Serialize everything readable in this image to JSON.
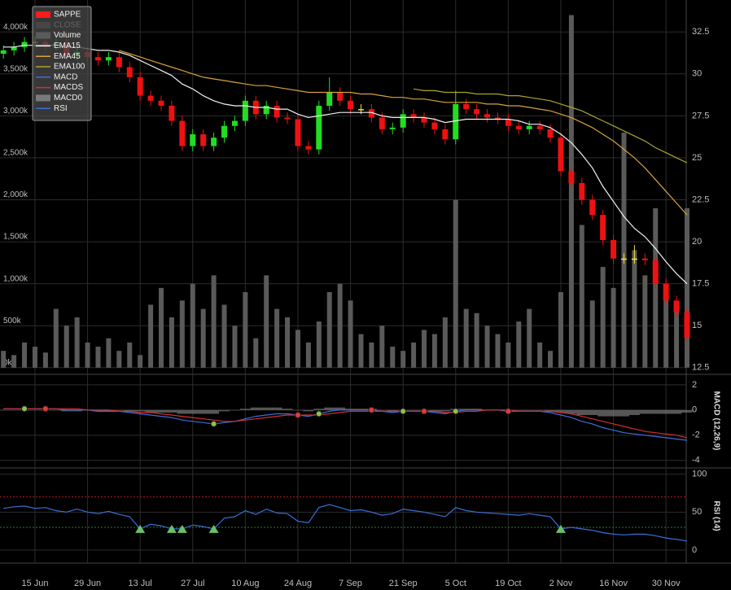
{
  "chart_data": [
    {
      "type": "candlestick",
      "categories": [
        null,
        null,
        null,
        "15 Jun",
        null,
        null,
        null,
        null,
        "29 Jun",
        null,
        null,
        null,
        null,
        "13 Jul",
        null,
        null,
        null,
        null,
        "27 Jul",
        null,
        null,
        null,
        null,
        "10 Aug",
        null,
        null,
        null,
        null,
        "24 Aug",
        null,
        null,
        null,
        null,
        "7 Sep",
        null,
        null,
        null,
        null,
        "21 Sep",
        null,
        null,
        null,
        null,
        "5 Oct",
        null,
        null,
        null,
        null,
        "19 Oct",
        null,
        null,
        null,
        null,
        "2 Nov",
        null,
        null,
        null,
        null,
        "16 Nov",
        null,
        null,
        null,
        null,
        "30 Nov",
        null,
        null
      ],
      "open": [
        31.2,
        31.4,
        31.6,
        31.9,
        31.9,
        31.7,
        31.8,
        31.1,
        31.3,
        31.0,
        30.8,
        31.0,
        30.4,
        29.8,
        28.7,
        28.4,
        28.1,
        27.2,
        25.7,
        26.4,
        25.7,
        26.2,
        26.9,
        27.2,
        28.4,
        27.6,
        28.1,
        27.4,
        27.3,
        25.7,
        25.5,
        28.1,
        28.9,
        28.4,
        27.9,
        27.9,
        27.4,
        26.7,
        26.8,
        27.6,
        27.4,
        27.1,
        26.7,
        26.1,
        28.2,
        27.9,
        27.6,
        27.4,
        27.3,
        26.9,
        26.7,
        26.9,
        26.7,
        26.2,
        24.2,
        23.5,
        22.5,
        21.6,
        20.1,
        19.0,
        19.0,
        19.0,
        18.9,
        17.5,
        16.5,
        15.8
      ],
      "high": [
        31.7,
        31.9,
        32.2,
        32.2,
        32.2,
        32.1,
        32.1,
        31.6,
        31.6,
        31.3,
        31.3,
        31.3,
        30.7,
        30.1,
        29.0,
        28.7,
        28.4,
        27.5,
        26.7,
        26.7,
        26.5,
        27.2,
        27.5,
        28.7,
        28.7,
        28.4,
        28.4,
        27.7,
        27.6,
        26.0,
        28.4,
        29.8,
        29.2,
        28.7,
        28.2,
        28.2,
        27.7,
        27.1,
        27.9,
        27.9,
        27.7,
        27.4,
        27.0,
        29.0,
        28.5,
        28.2,
        27.9,
        27.7,
        27.6,
        27.2,
        27.2,
        27.2,
        27.0,
        26.5,
        24.5,
        23.8,
        22.8,
        21.9,
        20.4,
        19.3,
        19.8,
        19.3,
        19.2,
        17.8,
        16.8,
        16.1
      ],
      "low": [
        30.9,
        31.1,
        31.3,
        31.6,
        31.4,
        31.4,
        30.8,
        30.8,
        30.7,
        30.5,
        30.5,
        30.1,
        29.5,
        28.4,
        28.1,
        27.8,
        26.9,
        25.4,
        25.4,
        25.4,
        25.4,
        25.9,
        26.6,
        26.9,
        27.3,
        27.3,
        27.1,
        27.0,
        25.4,
        25.2,
        25.2,
        27.8,
        28.1,
        27.6,
        27.6,
        27.1,
        26.4,
        26.4,
        26.5,
        27.1,
        26.8,
        26.4,
        25.8,
        25.8,
        27.6,
        27.3,
        27.1,
        27.0,
        26.6,
        26.4,
        26.4,
        26.4,
        25.9,
        23.9,
        23.2,
        22.2,
        21.3,
        19.8,
        18.7,
        18.7,
        18.7,
        18.6,
        17.2,
        16.2,
        15.5,
        14.0
      ],
      "close": [
        31.4,
        31.6,
        31.9,
        31.9,
        31.7,
        31.8,
        31.1,
        31.3,
        31.0,
        30.8,
        31.0,
        30.4,
        29.8,
        28.7,
        28.4,
        28.1,
        27.2,
        25.7,
        26.4,
        25.7,
        26.2,
        26.9,
        27.2,
        28.4,
        27.6,
        28.1,
        27.4,
        27.3,
        25.7,
        25.5,
        28.1,
        28.9,
        28.4,
        27.9,
        27.9,
        27.4,
        26.7,
        26.8,
        27.6,
        27.4,
        27.1,
        26.7,
        26.1,
        28.2,
        27.9,
        27.6,
        27.4,
        27.3,
        26.9,
        26.7,
        26.9,
        26.7,
        26.2,
        24.2,
        23.5,
        22.5,
        21.6,
        20.1,
        19.0,
        19.0,
        19.0,
        18.9,
        17.5,
        16.5,
        15.8,
        14.3
      ],
      "up_color": "#22dd22",
      "down_color": "#ee1111",
      "flat_color": "#f0e040",
      "ylim": [
        12.2,
        34.4
      ],
      "yticks": [
        12.5,
        15,
        17.5,
        20,
        22.5,
        25,
        27.5,
        30,
        32.5
      ],
      "volume": {
        "name": "Volume",
        "color": "#5a5a5a",
        "axis": "y2",
        "values": [
          200,
          150,
          300,
          250,
          180,
          700,
          500,
          600,
          300,
          250,
          350,
          200,
          300,
          150,
          750,
          950,
          600,
          800,
          1000,
          700,
          1100,
          750,
          500,
          900,
          350,
          1100,
          700,
          600,
          450,
          300,
          550,
          900,
          1000,
          800,
          400,
          300,
          500,
          250,
          200,
          300,
          450,
          400,
          600,
          2000,
          700,
          650,
          500,
          400,
          300,
          550,
          700,
          300,
          200,
          900,
          4200,
          1700,
          800,
          1200,
          950,
          2800,
          1400,
          1100,
          1900,
          1000,
          700,
          1900
        ]
      },
      "y2lim": [
        -60,
        4380
      ],
      "y2ticks": [
        {
          "value": 0,
          "label": "0k"
        },
        {
          "value": 500,
          "label": "500k"
        },
        {
          "value": 1000,
          "label": "1,000k"
        },
        {
          "value": 1500,
          "label": "1,500k"
        },
        {
          "value": 2000,
          "label": "2,000k"
        },
        {
          "value": 2500,
          "label": "2,500k"
        },
        {
          "value": 3000,
          "label": "3,000k"
        },
        {
          "value": 3500,
          "label": "3,500k"
        },
        {
          "value": 4000,
          "label": "4,000k"
        }
      ],
      "series": [
        {
          "name": "EMA15",
          "color": "#f2f2f2",
          "values": [
            31.6,
            31.6,
            31.7,
            31.7,
            31.7,
            31.7,
            31.6,
            31.6,
            31.5,
            31.4,
            31.4,
            31.3,
            31.1,
            30.8,
            30.5,
            30.2,
            29.9,
            29.4,
            29.1,
            28.7,
            28.4,
            28.2,
            28.1,
            28.1,
            28.0,
            28.0,
            27.9,
            27.9,
            27.6,
            27.4,
            27.5,
            27.6,
            27.7,
            27.7,
            27.7,
            27.7,
            27.5,
            27.4,
            27.4,
            27.4,
            27.4,
            27.3,
            27.1,
            27.2,
            27.3,
            27.3,
            27.3,
            27.3,
            27.3,
            27.2,
            27.0,
            27.0,
            26.8,
            26.4,
            25.9,
            25.2,
            24.4,
            23.3,
            22.4,
            21.5,
            20.8,
            20.3,
            19.6,
            18.8,
            18.1,
            17.5
          ]
        },
        {
          "name": "EMA45",
          "color": "#d9a13a",
          "values": [
            null,
            null,
            null,
            null,
            null,
            null,
            null,
            null,
            null,
            null,
            null,
            31.4,
            31.2,
            31.0,
            30.8,
            30.6,
            30.4,
            30.2,
            30.0,
            29.8,
            29.7,
            29.6,
            29.5,
            29.4,
            29.3,
            29.3,
            29.2,
            29.1,
            29.0,
            28.9,
            28.9,
            28.9,
            28.9,
            28.9,
            28.8,
            28.8,
            28.7,
            28.6,
            28.6,
            28.5,
            28.5,
            28.4,
            28.3,
            28.3,
            28.3,
            28.3,
            28.2,
            28.2,
            28.1,
            28.1,
            28.0,
            27.9,
            27.8,
            27.6,
            27.4,
            27.1,
            26.8,
            26.4,
            26.0,
            25.5,
            25.0,
            24.4,
            23.7,
            23.0,
            22.3,
            21.6
          ]
        },
        {
          "name": "EMA100",
          "color": "#a8a62a",
          "values": [
            null,
            null,
            null,
            null,
            null,
            null,
            null,
            null,
            null,
            null,
            null,
            null,
            null,
            null,
            null,
            null,
            null,
            null,
            null,
            null,
            null,
            null,
            null,
            null,
            null,
            null,
            null,
            null,
            null,
            null,
            null,
            null,
            null,
            null,
            null,
            null,
            null,
            null,
            null,
            29.1,
            29.0,
            29.0,
            28.9,
            28.9,
            28.9,
            28.8,
            28.8,
            28.8,
            28.7,
            28.7,
            28.6,
            28.5,
            28.4,
            28.2,
            28.0,
            27.8,
            27.5,
            27.2,
            26.9,
            26.6,
            26.3,
            26.0,
            25.6,
            25.3,
            25.0,
            24.7
          ]
        }
      ],
      "legend": [
        {
          "name": "SAPPE",
          "color": "#ff1a1a"
        },
        {
          "name": "CLOSE",
          "color": "#555555",
          "hidden": true
        }
      ],
      "grid": true
    },
    {
      "type": "line",
      "title": "MACD (12,26,9)",
      "ylim": [
        -4.4,
        2.7
      ],
      "yticks": [
        2,
        0,
        -2,
        -4
      ],
      "series": [
        {
          "name": "MACD",
          "color": "#3a6fd8",
          "values": [
            0.1,
            0.1,
            0.1,
            0.1,
            0.1,
            0.1,
            0.0,
            0.0,
            0.0,
            -0.1,
            -0.1,
            -0.1,
            -0.2,
            -0.3,
            -0.4,
            -0.5,
            -0.6,
            -0.8,
            -0.9,
            -1.0,
            -1.1,
            -1.0,
            -0.9,
            -0.7,
            -0.5,
            -0.4,
            -0.3,
            -0.3,
            -0.4,
            -0.5,
            -0.3,
            -0.1,
            0.0,
            0.0,
            0.0,
            0.0,
            -0.1,
            -0.2,
            -0.1,
            -0.1,
            -0.1,
            -0.2,
            -0.3,
            -0.1,
            0.0,
            0.0,
            0.0,
            0.0,
            -0.1,
            -0.1,
            -0.1,
            -0.1,
            -0.2,
            -0.4,
            -0.6,
            -0.9,
            -1.1,
            -1.4,
            -1.6,
            -1.8,
            -1.9,
            -2.0,
            -2.1,
            -2.2,
            -2.3,
            -2.4
          ]
        },
        {
          "name": "MACDS",
          "color": "#d32f2f",
          "values": [
            0.1,
            0.1,
            0.1,
            0.1,
            0.1,
            0.1,
            0.1,
            0.1,
            0.0,
            0.0,
            0.0,
            -0.1,
            -0.1,
            -0.2,
            -0.2,
            -0.3,
            -0.4,
            -0.5,
            -0.6,
            -0.7,
            -0.8,
            -0.9,
            -0.9,
            -0.8,
            -0.7,
            -0.6,
            -0.5,
            -0.4,
            -0.4,
            -0.4,
            -0.4,
            -0.3,
            -0.2,
            -0.1,
            -0.1,
            -0.1,
            -0.1,
            -0.1,
            -0.1,
            -0.1,
            -0.1,
            -0.1,
            -0.2,
            -0.2,
            -0.1,
            -0.1,
            0.0,
            0.0,
            0.0,
            -0.1,
            -0.1,
            -0.1,
            -0.1,
            -0.2,
            -0.3,
            -0.5,
            -0.7,
            -0.9,
            -1.1,
            -1.3,
            -1.5,
            -1.7,
            -1.8,
            -1.9,
            -2.0,
            -2.2
          ]
        },
        {
          "name": "MACD0",
          "color": "#7a7a7a",
          "style": "bar",
          "values": [
            0,
            0,
            0,
            0,
            0,
            0,
            -0.1,
            -0.1,
            0,
            -0.1,
            -0.1,
            0,
            -0.1,
            -0.1,
            -0.2,
            -0.2,
            -0.2,
            -0.3,
            -0.3,
            -0.3,
            -0.3,
            -0.1,
            0,
            0.1,
            0.2,
            0.2,
            0.2,
            0.1,
            0,
            -0.1,
            0.1,
            0.2,
            0.2,
            0.1,
            0.1,
            0.1,
            0,
            -0.1,
            0,
            0,
            0,
            -0.1,
            -0.1,
            0.1,
            0.1,
            0.1,
            0,
            0,
            -0.1,
            0,
            0,
            0,
            -0.1,
            -0.2,
            -0.3,
            -0.4,
            -0.4,
            -0.5,
            -0.5,
            -0.5,
            -0.4,
            -0.3,
            -0.3,
            -0.3,
            -0.3,
            -0.2
          ]
        }
      ],
      "signals": [
        {
          "index": 2,
          "color": "#8bc34a"
        },
        {
          "index": 4,
          "color": "#e53935"
        },
        {
          "index": 20,
          "color": "#8bc34a"
        },
        {
          "index": 28,
          "color": "#e53935"
        },
        {
          "index": 30,
          "color": "#8bc34a"
        },
        {
          "index": 35,
          "color": "#e53935"
        },
        {
          "index": 38,
          "color": "#8bc34a"
        },
        {
          "index": 40,
          "color": "#e53935"
        },
        {
          "index": 43,
          "color": "#8bc34a"
        },
        {
          "index": 48,
          "color": "#e53935"
        }
      ],
      "grid": true
    },
    {
      "type": "line",
      "title": "RSI (14)",
      "ylim": [
        -15,
        105
      ],
      "yticks": [
        100,
        50,
        0
      ],
      "hlines": [
        {
          "value": 70,
          "color": "#b71c1c"
        },
        {
          "value": 30,
          "color": "#2e7d32"
        }
      ],
      "series": [
        {
          "name": "RSI",
          "color": "#3a6fd8",
          "values": [
            55,
            57,
            58,
            55,
            56,
            52,
            50,
            54,
            50,
            48,
            51,
            47,
            44,
            28,
            34,
            32,
            28,
            28,
            33,
            31,
            28,
            42,
            44,
            52,
            47,
            54,
            49,
            48,
            38,
            36,
            56,
            60,
            56,
            52,
            53,
            50,
            46,
            48,
            54,
            52,
            50,
            47,
            44,
            56,
            52,
            50,
            49,
            48,
            47,
            46,
            48,
            46,
            44,
            28,
            30,
            28,
            26,
            23,
            21,
            20,
            21,
            21,
            19,
            16,
            14,
            12
          ]
        }
      ],
      "signals": [
        {
          "index": 13
        },
        {
          "index": 16
        },
        {
          "index": 17
        },
        {
          "index": 20
        },
        {
          "index": 53
        }
      ],
      "signal_color": "#6abf69",
      "grid": true
    }
  ]
}
